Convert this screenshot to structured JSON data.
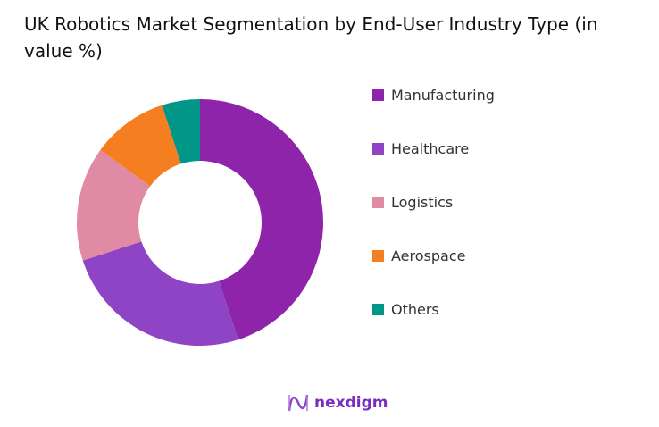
{
  "chart_data": {
    "type": "pie",
    "title": "UK Robotics Market Segmentation by End-User Industry Type (in value %)",
    "donut": true,
    "legend_position": "right",
    "categories": [
      "Manufacturing",
      "Healthcare",
      "Logistics",
      "Aerospace",
      "Others"
    ],
    "values": [
      45,
      25,
      15,
      10,
      5
    ],
    "colors": [
      "#8e24aa",
      "#8e44c4",
      "#e08aa4",
      "#f57f20",
      "#009688"
    ]
  },
  "logo": {
    "text": "nexdigm"
  }
}
